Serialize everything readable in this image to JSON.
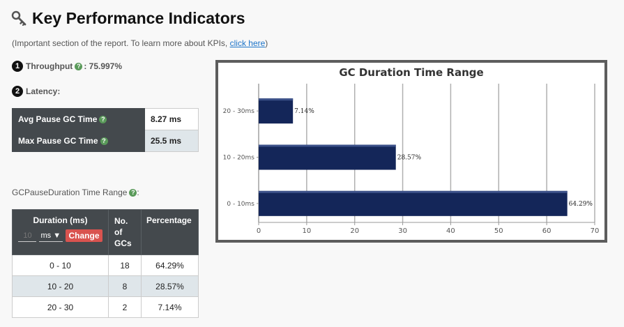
{
  "page": {
    "title": "Key Performance Indicators",
    "subtitle_prefix": "(Important section of the report. To learn more about KPIs, ",
    "subtitle_link": "click here",
    "subtitle_suffix": ")",
    "title_icon": "key-icon"
  },
  "throughput": {
    "number": "1",
    "label": "Throughput",
    "value": ": 75.997%"
  },
  "latency": {
    "number": "2",
    "label": "Latency:"
  },
  "pause_table": [
    {
      "label": "Avg Pause GC Time",
      "value": "8.27 ms"
    },
    {
      "label": "Max Pause GC Time",
      "value": "25.5 ms"
    }
  ],
  "range_section": {
    "title": "GCPauseDuration Time Range",
    "colon": ":"
  },
  "duration_table": {
    "headers": {
      "duration": "Duration (ms)",
      "count_line1": "No.",
      "count_line2": "of",
      "count_line3": "GCs",
      "percentage": "Percentage"
    },
    "controls": {
      "interval_placeholder": "10",
      "unit": "ms",
      "change_label": "Change"
    },
    "rows": [
      {
        "range": "0 - 10",
        "count": "18",
        "pct": "64.29%"
      },
      {
        "range": "10 - 20",
        "count": "8",
        "pct": "28.57%"
      },
      {
        "range": "20 - 30",
        "count": "2",
        "pct": "7.14%"
      }
    ]
  },
  "colors": {
    "bar": "#142659",
    "header": "#44494d",
    "change_btn": "#d9534f",
    "help": "#5a9a5a"
  },
  "chart_data": {
    "type": "bar",
    "orientation": "horizontal",
    "title": "GC Duration Time Range",
    "categories": [
      "20 - 30ms",
      "10 - 20ms",
      "0 - 10ms"
    ],
    "values": [
      7.14,
      28.57,
      64.29
    ],
    "data_labels": [
      "7.14%",
      "28.57%",
      "64.29%"
    ],
    "xlim": [
      0,
      70
    ],
    "xticks": [
      0,
      10,
      20,
      30,
      40,
      50,
      60,
      70
    ],
    "grid": true,
    "legend": "none"
  }
}
